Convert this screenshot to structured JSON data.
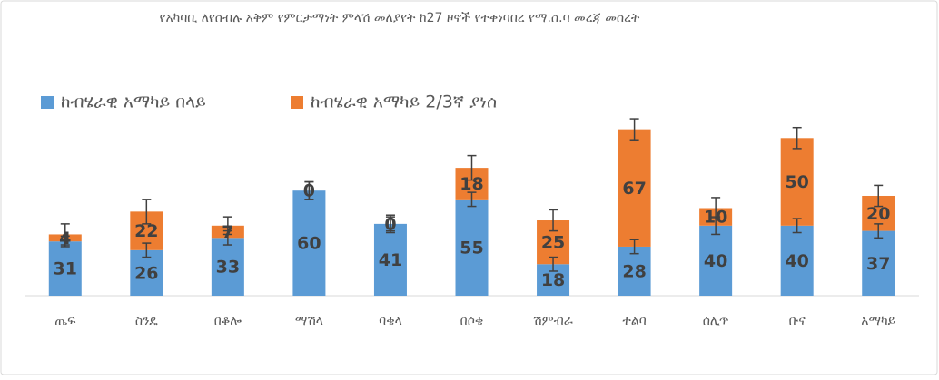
{
  "chart_data": {
    "type": "stacked_bar",
    "title": "የአካባቢ ለየሰብሉ አቅም የምርታማነት ምላሽ መለያየት ከ27 ዞኖች የተቀነባበረ የማ.ስ.ባ መረጃ መሰረት",
    "categories": [
      "ጤፍ",
      "ስንዴ",
      "በቆሎ",
      "ማሽላ",
      "ባቄላ",
      "በሶቄ",
      "ሽምብራ",
      "ተልባ",
      "ሰሊጥ",
      "ቡና",
      "አማካይ"
    ],
    "series": [
      {
        "name": "ከብሄራዊ አማካይ በላይ",
        "color": "#5b9bd5",
        "values": [
          31,
          26,
          33,
          60,
          41,
          55,
          18,
          28,
          40,
          40,
          37
        ],
        "errors": [
          3,
          4,
          4,
          5,
          4,
          4,
          4,
          4,
          5,
          4,
          4
        ]
      },
      {
        "name": "ከብሄራዊ አማካይ 2/3ኛ ያነሰ",
        "color": "#ed7d31",
        "values": [
          4,
          22,
          7,
          0,
          0,
          18,
          25,
          67,
          10,
          50,
          20
        ],
        "errors": [
          6,
          7,
          5,
          5,
          5,
          7,
          6,
          6,
          6,
          6,
          6
        ]
      }
    ],
    "ylim": [
      0,
      100
    ],
    "legend": "top-left"
  }
}
